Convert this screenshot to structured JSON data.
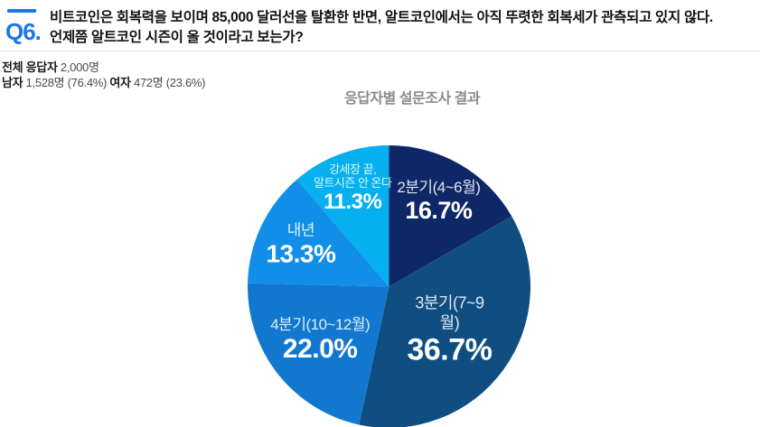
{
  "header": {
    "question_no": "Q6.",
    "question_line1": "비트코인은 회복력을 보이며 85,000 달러선을 탈환한 반면, 알트코인에서는 아직 뚜렷한 회복세가 관측되고 있지 않다.",
    "question_line2": "언제쯤 알트코인 시즌이 올 것이라고 보는가?",
    "accent_color": "#1b78e8"
  },
  "respondents": {
    "total_label": "전체 응답자",
    "total_value": " 2,000명",
    "male_label": "남자",
    "male_value": " 1,528명 (76.4%) ",
    "female_label": "여자",
    "female_value": " 472명 (23.6%)"
  },
  "chart_data": {
    "type": "pie",
    "title": "응답자별 설문조사 결과",
    "categories": [
      "2분기(4~6월)",
      "3분기(7~9월)",
      "4분기(10~12월)",
      "내년",
      "강세장 끝,\n알트시즌 안 온다"
    ],
    "values": [
      16.7,
      36.7,
      22.0,
      13.3,
      11.3
    ],
    "value_labels": [
      "16.7%",
      "36.7%",
      "22.0%",
      "13.3%",
      "11.3%"
    ],
    "colors": [
      "#0d2767",
      "#104e81",
      "#1277ce",
      "#108ee8",
      "#06b0ee"
    ],
    "start_angle_deg": 0,
    "direction": "clockwise",
    "legend": "none",
    "label_radius_frac": [
      0.7,
      0.53,
      0.62,
      0.69,
      0.74
    ],
    "value_font_px": [
      27,
      34,
      30,
      28,
      24
    ],
    "name_font_px": [
      17,
      18,
      17,
      17,
      13
    ]
  }
}
